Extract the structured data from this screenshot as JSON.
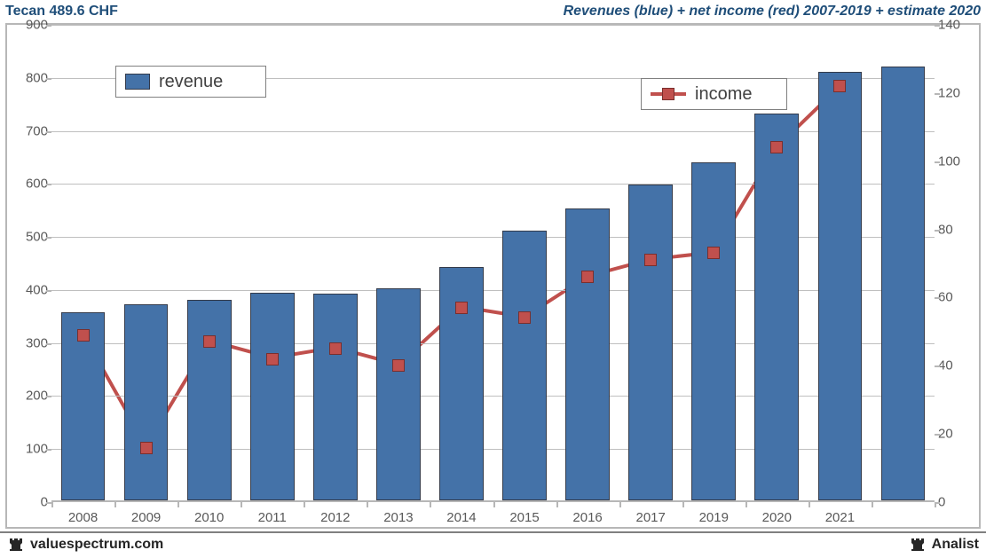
{
  "header": {
    "title_left": "Tecan 489.6 CHF",
    "title_right": "Revenues (blue) + net income (red) 2007-2019 + estimate 2020"
  },
  "footer": {
    "left_label": "valuespectrum.com",
    "right_label": "Analist"
  },
  "legend": {
    "revenue_label": "revenue",
    "income_label": "income"
  },
  "chart": {
    "type": "bar+line-dual-axis",
    "background_color": "#ffffff",
    "border_color": "#b7b7b7",
    "grid_color": "#bfbfbf",
    "axis_label_color": "#595959",
    "axis_fontsize": 15,
    "bar_color": "#4472a8",
    "bar_border_color": "#333a4a",
    "line_color": "#c0504d",
    "line_width": 4,
    "marker_size": 12,
    "bar_width_ratio": 0.7,
    "categories": [
      "2008",
      "2009",
      "2010",
      "2011",
      "2012",
      "2013",
      "2014",
      "2015",
      "2016",
      "2017",
      "2019",
      "2020",
      "2021"
    ],
    "y_left": {
      "min": 0,
      "max": 900,
      "step": 100
    },
    "y_right": {
      "min": 0,
      "max": 140,
      "step": 20
    },
    "revenue_values": [
      355,
      370,
      378,
      392,
      390,
      400,
      440,
      508,
      550,
      595,
      637,
      730,
      808
    ],
    "extra_last_bar": 818,
    "income_values": [
      49,
      16,
      47,
      42,
      45,
      40,
      57,
      54,
      66,
      71,
      73,
      104,
      122
    ],
    "title_color": "#1f4e79"
  }
}
